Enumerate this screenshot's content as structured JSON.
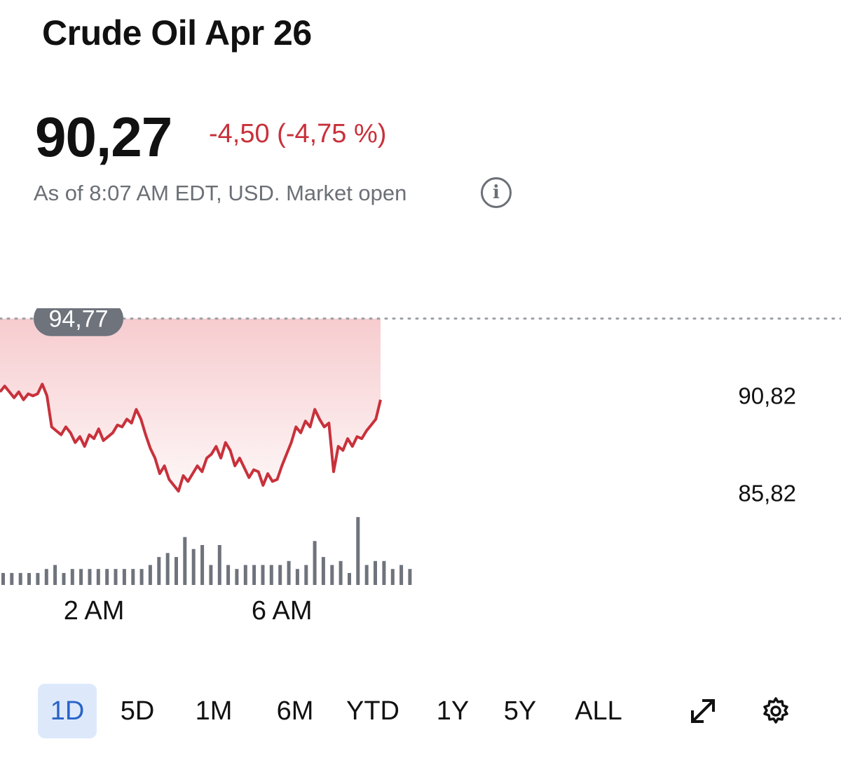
{
  "header": {
    "title": "Crude Oil Apr 26",
    "price": "90,27",
    "change": "-4,50 (-4,75 %)",
    "as_of": "As of 8:07 AM EDT, USD. Market open",
    "info_icon": "info-icon"
  },
  "colors": {
    "line": "#c8313b",
    "fill_top": "#f6c9cc",
    "volume": "#6e737c",
    "active_range_bg": "#dde9fb",
    "active_range_text": "#2a64c8"
  },
  "chart_data": {
    "type": "line",
    "previous_close_label": "94,77",
    "previous_close": 94.77,
    "y_tick_labels": [
      "90,82",
      "85,82"
    ],
    "y_ticks": [
      90.82,
      85.82
    ],
    "ylim": [
      84.5,
      95.3
    ],
    "x_tick_labels": [
      "2 AM",
      "6 AM"
    ],
    "x_ticks": [
      2,
      6
    ],
    "xlim": [
      0,
      17.9
    ],
    "series": [
      {
        "x": [
          0.0,
          0.1,
          0.2,
          0.3,
          0.4,
          0.5,
          0.6,
          0.7,
          0.8,
          0.9,
          1.0,
          1.1,
          1.2,
          1.3,
          1.4,
          1.5,
          1.6,
          1.7,
          1.8,
          1.9,
          2.0,
          2.1,
          2.2,
          2.3,
          2.4,
          2.5,
          2.6,
          2.7,
          2.8,
          2.9,
          3.0,
          3.1,
          3.2,
          3.3,
          3.4,
          3.5,
          3.6,
          3.7,
          3.8,
          3.9,
          4.0,
          4.1,
          4.2,
          4.3,
          4.4,
          4.5,
          4.6,
          4.7,
          4.8,
          4.9,
          5.0,
          5.1,
          5.2,
          5.3,
          5.4,
          5.5,
          5.6,
          5.7,
          5.8,
          5.9,
          6.0,
          6.1,
          6.2,
          6.3,
          6.4,
          6.5,
          6.6,
          6.7,
          6.8,
          6.9,
          7.0,
          7.1,
          7.2,
          7.3,
          7.4,
          7.5,
          7.6,
          7.7,
          7.8,
          7.9,
          8.0,
          8.1
        ],
        "y": [
          91.0,
          91.3,
          91.0,
          90.7,
          91.0,
          90.6,
          90.9,
          90.8,
          90.9,
          91.4,
          90.8,
          89.2,
          89.0,
          88.8,
          89.2,
          88.9,
          88.4,
          88.7,
          88.2,
          88.8,
          88.6,
          89.1,
          88.5,
          88.7,
          88.9,
          89.3,
          89.2,
          89.6,
          89.4,
          90.1,
          89.6,
          88.8,
          88.1,
          87.6,
          86.8,
          87.2,
          86.5,
          86.2,
          85.9,
          86.7,
          86.4,
          86.8,
          87.2,
          86.9,
          87.6,
          87.8,
          88.2,
          87.6,
          88.4,
          88.0,
          87.2,
          87.6,
          87.1,
          86.6,
          87.0,
          86.9,
          86.2,
          86.8,
          86.4,
          86.5,
          87.2,
          87.8,
          88.4,
          89.2,
          88.9,
          89.5,
          89.2,
          90.1,
          89.6,
          89.2,
          89.4,
          86.9,
          88.2,
          88.0,
          88.6,
          88.2,
          88.7,
          88.6,
          89.0,
          89.3,
          89.6,
          90.6
        ]
      }
    ],
    "volume": [
      3,
      3,
      3,
      3,
      3,
      4,
      5,
      3,
      4,
      4,
      4,
      4,
      4,
      4,
      4,
      4,
      4,
      5,
      7,
      8,
      7,
      12,
      9,
      10,
      5,
      10,
      5,
      4,
      5,
      5,
      5,
      5,
      5,
      6,
      4,
      5,
      11,
      7,
      5,
      6,
      3,
      17,
      5,
      6,
      6,
      4,
      5,
      4
    ]
  },
  "ranges": {
    "active": "1D",
    "items": [
      "1D",
      "5D",
      "1M",
      "6M",
      "YTD",
      "1Y",
      "5Y",
      "ALL"
    ]
  },
  "tools": {
    "expand_icon": "expand-icon",
    "settings_icon": "gear-icon"
  }
}
